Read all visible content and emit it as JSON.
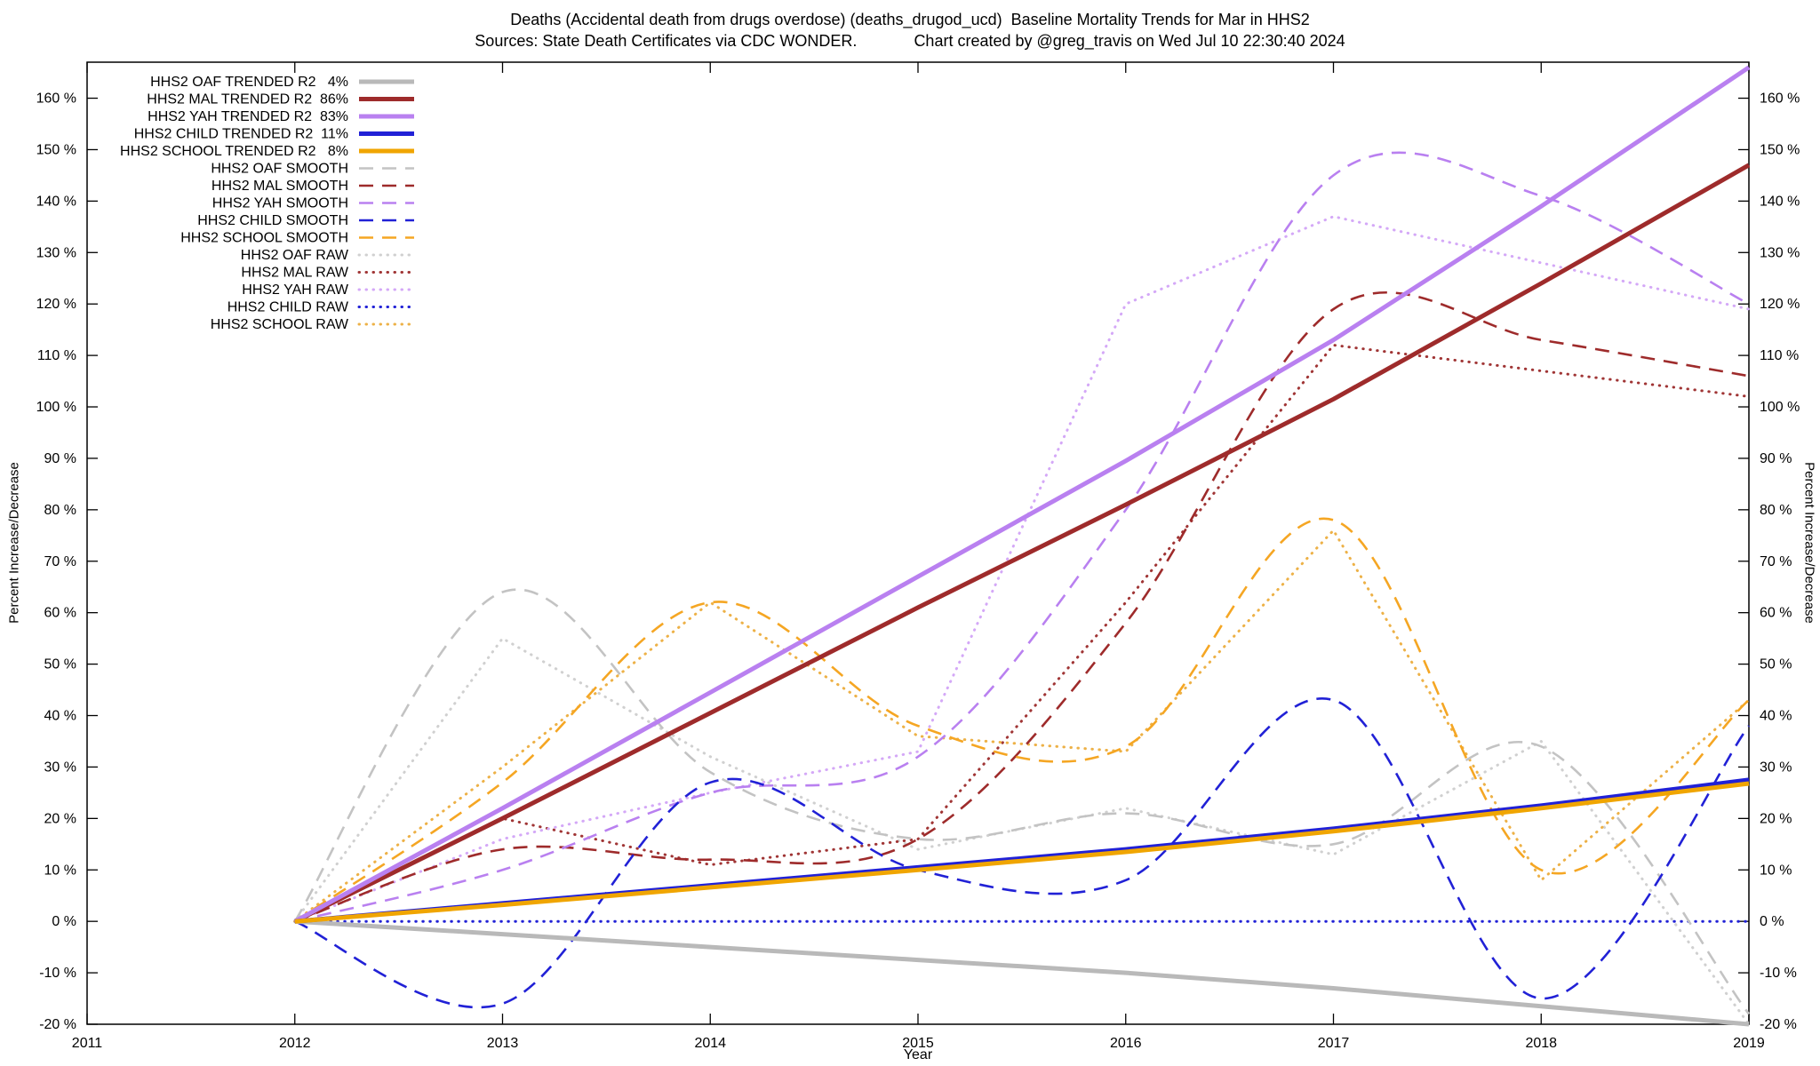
{
  "title": {
    "line1": "Deaths (Accidental death from drugs overdose) (deaths_drugod_ucd)  Baseline Mortality Trends for Mar in HHS2",
    "sources": "Sources: State Death Certificates via CDC WONDER.",
    "credit": "Chart created by @greg_travis on Wed Jul 10 22:30:40 2024"
  },
  "chart_data": {
    "type": "line",
    "xlabel": "Year",
    "ylabel_left": "Percent Increase/Decrease",
    "ylabel_right": "Percent Increase/Decrease",
    "xlim": [
      2011,
      2019
    ],
    "ylim": [
      -20,
      167
    ],
    "x_ticks": [
      2011,
      2012,
      2013,
      2014,
      2015,
      2016,
      2017,
      2018,
      2019
    ],
    "y_ticks": [
      -20,
      -10,
      0,
      10,
      20,
      30,
      40,
      50,
      60,
      70,
      80,
      90,
      100,
      110,
      120,
      130,
      140,
      150,
      160
    ],
    "y_tick_suffix": " %",
    "grid": false,
    "legend_position": "top-left",
    "x": [
      2012,
      2013,
      2014,
      2015,
      2016,
      2017,
      2018,
      2019
    ],
    "series": [
      {
        "id": "hhs2-oaf-trended",
        "legend": "HHS2 OAF TRENDED R2   4%",
        "r2": "4%",
        "style": "solid",
        "smooth": false,
        "color": "#b9b9b9",
        "values": [
          0,
          -2.5,
          -5,
          -7.5,
          -10,
          -13,
          -16.5,
          -20
        ]
      },
      {
        "id": "hhs2-mal-trended",
        "legend": "HHS2 MAL TRENDED R2  86%",
        "r2": "86%",
        "style": "solid",
        "smooth": false,
        "color": "#9e2b2b",
        "values": [
          0,
          20,
          40.5,
          61,
          81,
          101.5,
          124,
          147
        ]
      },
      {
        "id": "hhs2-yah-trended",
        "legend": "HHS2 YAH TRENDED R2  83%",
        "r2": "83%",
        "style": "solid",
        "smooth": false,
        "color": "#b980f0",
        "values": [
          0,
          22,
          44.5,
          67,
          89.5,
          113,
          139,
          166
        ]
      },
      {
        "id": "hhs2-child-trended",
        "legend": "HHS2 CHILD TRENDED R2  11%",
        "r2": "11%",
        "style": "solid",
        "smooth": false,
        "color": "#2121d6",
        "values": [
          0,
          3.5,
          7,
          10.5,
          14,
          18,
          22.5,
          27.5
        ]
      },
      {
        "id": "hhs2-school-trended",
        "legend": "HHS2 SCHOOL TRENDED R2   8%",
        "r2": "8%",
        "style": "solid",
        "smooth": false,
        "color": "#f0a500",
        "values": [
          0,
          3.2,
          6.6,
          10,
          13.5,
          17.5,
          22,
          26.8
        ]
      },
      {
        "id": "hhs2-oaf-smooth",
        "legend": "HHS2 OAF SMOOTH",
        "style": "dashed",
        "smooth": true,
        "color": "#c3c3c3",
        "values": [
          0,
          64,
          29,
          16,
          21,
          15,
          34,
          -18
        ]
      },
      {
        "id": "hhs2-mal-smooth",
        "legend": "HHS2 MAL SMOOTH",
        "style": "dashed",
        "smooth": true,
        "color": "#9e2b2b",
        "values": [
          0,
          14,
          12,
          16,
          58,
          119,
          113,
          106
        ]
      },
      {
        "id": "hhs2-yah-smooth",
        "legend": "HHS2 YAH SMOOTH",
        "style": "dashed",
        "smooth": true,
        "color": "#b980f0",
        "values": [
          0,
          10,
          25,
          32,
          80,
          145,
          141,
          120
        ]
      },
      {
        "id": "hhs2-child-smooth",
        "legend": "HHS2 CHILD SMOOTH",
        "style": "dashed",
        "smooth": true,
        "color": "#2121d6",
        "values": [
          0,
          -16,
          27,
          10,
          8,
          43,
          -15,
          38
        ]
      },
      {
        "id": "hhs2-school-smooth",
        "legend": "HHS2 SCHOOL SMOOTH",
        "style": "dashed",
        "smooth": true,
        "color": "#f5a623",
        "values": [
          0,
          27,
          62,
          38,
          34,
          78,
          10,
          43
        ]
      },
      {
        "id": "hhs2-oaf-raw",
        "legend": "HHS2 OAF RAW",
        "style": "dotted",
        "smooth": false,
        "color": "#d0d0d0",
        "values": [
          0,
          55,
          32,
          14,
          22,
          13,
          35,
          -20
        ]
      },
      {
        "id": "hhs2-mal-raw",
        "legend": "HHS2 MAL RAW",
        "style": "dotted",
        "smooth": false,
        "color": "#a03535",
        "values": [
          0,
          20,
          11,
          16,
          62,
          112,
          107,
          102
        ]
      },
      {
        "id": "hhs2-yah-raw",
        "legend": "HHS2 YAH RAW",
        "style": "dotted",
        "smooth": false,
        "color": "#d4a8f7",
        "values": [
          0,
          16,
          25,
          33,
          120,
          137,
          128,
          119
        ]
      },
      {
        "id": "hhs2-child-raw",
        "legend": "HHS2 CHILD RAW",
        "style": "dotted",
        "smooth": false,
        "color": "#2121d6",
        "values": [
          0,
          0,
          0,
          0,
          0,
          0,
          0,
          0
        ]
      },
      {
        "id": "hhs2-school-raw",
        "legend": "HHS2 SCHOOL RAW",
        "style": "dotted",
        "smooth": false,
        "color": "#edb147",
        "values": [
          0,
          30,
          62,
          36,
          33,
          76,
          8,
          43
        ]
      }
    ]
  }
}
